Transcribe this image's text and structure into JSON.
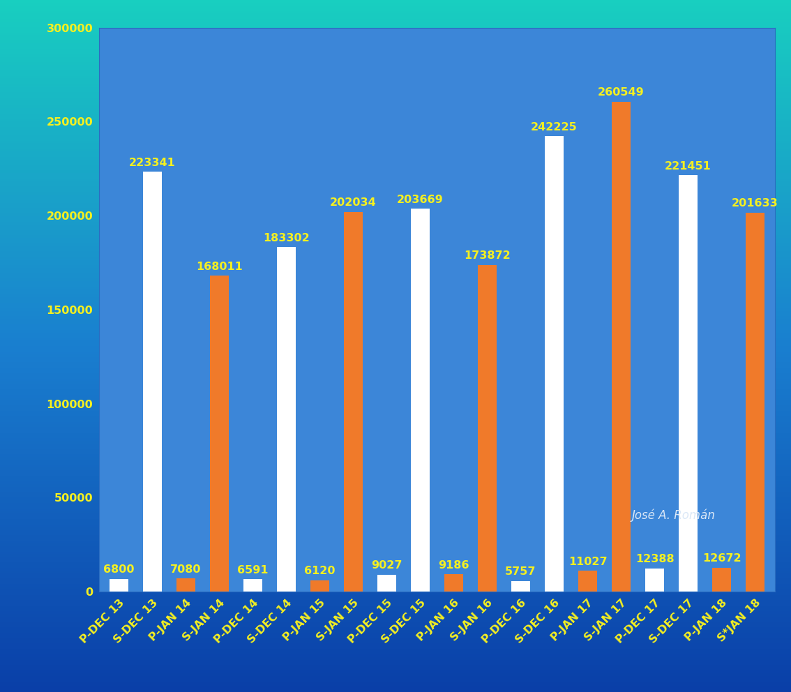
{
  "chart_data": {
    "type": "bar",
    "categories": [
      "P-DEC 13",
      "S-DEC 13",
      "P-JAN 14",
      "S-JAN 14",
      "P-DEC 14",
      "S-DEC 14",
      "P-JAN 15",
      "S-JAN 15",
      "P-DEC 15",
      "S-DEC 15",
      "P-JAN 16",
      "S-JAN 16",
      "P-DEC 16",
      "S-DEC 16",
      "P-JAN 17",
      "S-JAN 17",
      "P-DEC 17",
      "S-DEC 17",
      "P-JAN 18",
      "S*JAN 18"
    ],
    "values": [
      6800,
      223341,
      7080,
      168011,
      6591,
      183302,
      6120,
      202034,
      9027,
      203669,
      9186,
      173872,
      5757,
      242225,
      11027,
      260549,
      12388,
      221451,
      12672,
      201633
    ],
    "colors": [
      "#ffffff",
      "#ffffff",
      "#f07a2a",
      "#f07a2a",
      "#ffffff",
      "#ffffff",
      "#f07a2a",
      "#f07a2a",
      "#ffffff",
      "#ffffff",
      "#f07a2a",
      "#f07a2a",
      "#ffffff",
      "#ffffff",
      "#f07a2a",
      "#f07a2a",
      "#ffffff",
      "#ffffff",
      "#f07a2a",
      "#f07a2a"
    ],
    "ylim": [
      0,
      300000
    ],
    "yticks": [
      0,
      50000,
      100000,
      150000,
      200000,
      250000,
      300000
    ],
    "grid": false,
    "data_labels": true,
    "annotations": [
      "José A. Román"
    ]
  }
}
